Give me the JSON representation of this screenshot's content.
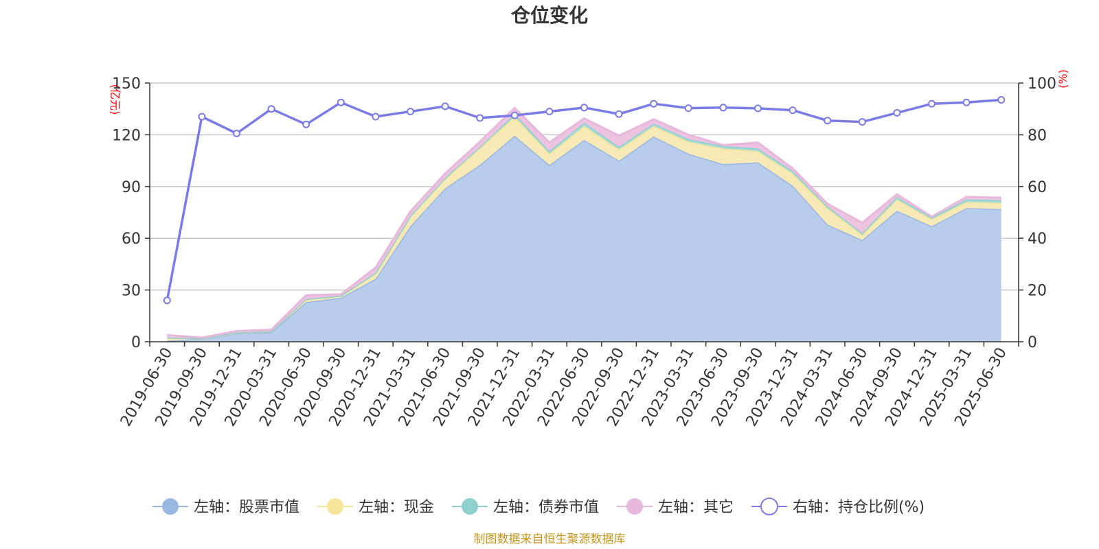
{
  "chart_data": {
    "type": "area",
    "title": "仓位变化",
    "left_axis_unit": "(亿元)",
    "right_axis_unit": "(%)",
    "left_ylim": [
      0,
      150
    ],
    "left_ticks": [
      "0",
      "30",
      "60",
      "90",
      "120",
      "150"
    ],
    "right_ylim": [
      0,
      100
    ],
    "right_ticks": [
      "0",
      "20",
      "40",
      "60",
      "80",
      "100"
    ],
    "grid": true,
    "legend_position": "bottom",
    "x": [
      "2019-06-30",
      "2019-09-30",
      "2019-12-31",
      "2020-03-31",
      "2020-06-30",
      "2020-09-30",
      "2020-12-31",
      "2021-03-31",
      "2021-06-30",
      "2021-09-30",
      "2021-12-31",
      "2022-03-31",
      "2022-06-30",
      "2022-09-30",
      "2022-12-31",
      "2023-03-31",
      "2023-06-30",
      "2023-09-30",
      "2023-12-31",
      "2024-03-31",
      "2024-06-30",
      "2024-09-30",
      "2024-12-31",
      "2025-03-31",
      "2025-06-30"
    ],
    "series": [
      {
        "name": "左轴：股票市值",
        "axis": "left",
        "type": "stacked-area",
        "color": "#9ab6e2",
        "fill": "#b8cdeb",
        "values": [
          0.6,
          1.8,
          4.8,
          5.6,
          23.0,
          25.6,
          36.5,
          67.0,
          89.0,
          102.5,
          119.5,
          102.5,
          117.0,
          105.0,
          119.0,
          109.0,
          103.0,
          104.0,
          90.5,
          68.0,
          59.0,
          76.0,
          67.0,
          77.5,
          77.0
        ]
      },
      {
        "name": "左轴：现金",
        "axis": "left",
        "type": "stacked-area",
        "color": "#f5e59a",
        "fill": "#f8eab6",
        "values": [
          1.5,
          0.2,
          0.4,
          0.4,
          1.5,
          0.9,
          3.0,
          5.5,
          5.5,
          10.0,
          11.0,
          6.5,
          8.0,
          6.5,
          6.0,
          7.0,
          9.0,
          6.5,
          7.0,
          9.5,
          3.0,
          6.5,
          4.0,
          3.5,
          3.5
        ]
      },
      {
        "name": "左轴：债券市值",
        "axis": "left",
        "type": "stacked-area",
        "color": "#8fd0cc",
        "fill": "#a9dcd8",
        "values": [
          0.3,
          0.1,
          0.2,
          0.1,
          0.3,
          0.2,
          0.5,
          0.5,
          0.5,
          0.5,
          1.5,
          1.5,
          2.0,
          1.5,
          1.5,
          1.5,
          1.5,
          1.5,
          1.5,
          1.0,
          1.0,
          1.5,
          1.0,
          1.5,
          1.5
        ]
      },
      {
        "name": "左轴：其它",
        "axis": "left",
        "type": "stacked-area",
        "color": "#e8b8dc",
        "fill": "#ecc4e1",
        "values": [
          1.5,
          0.3,
          0.8,
          0.9,
          2.2,
          0.8,
          3.0,
          2.5,
          2.5,
          3.0,
          3.5,
          5.0,
          2.5,
          6.5,
          2.5,
          2.5,
          0.5,
          3.5,
          1.5,
          1.5,
          6.0,
          1.5,
          0.5,
          1.5,
          1.5
        ]
      },
      {
        "name": "右轴：持仓比例(%)",
        "axis": "right",
        "type": "line",
        "color": "#7b7be8",
        "values": [
          16.0,
          87.0,
          80.5,
          90.0,
          84.0,
          92.5,
          87.0,
          89.0,
          91.0,
          86.5,
          87.5,
          89.0,
          90.5,
          88.0,
          92.0,
          90.3,
          90.5,
          90.2,
          89.5,
          85.5,
          85.0,
          88.5,
          92.0,
          92.5,
          93.5
        ]
      }
    ],
    "source": "制图数据来自恒生聚源数据库"
  }
}
